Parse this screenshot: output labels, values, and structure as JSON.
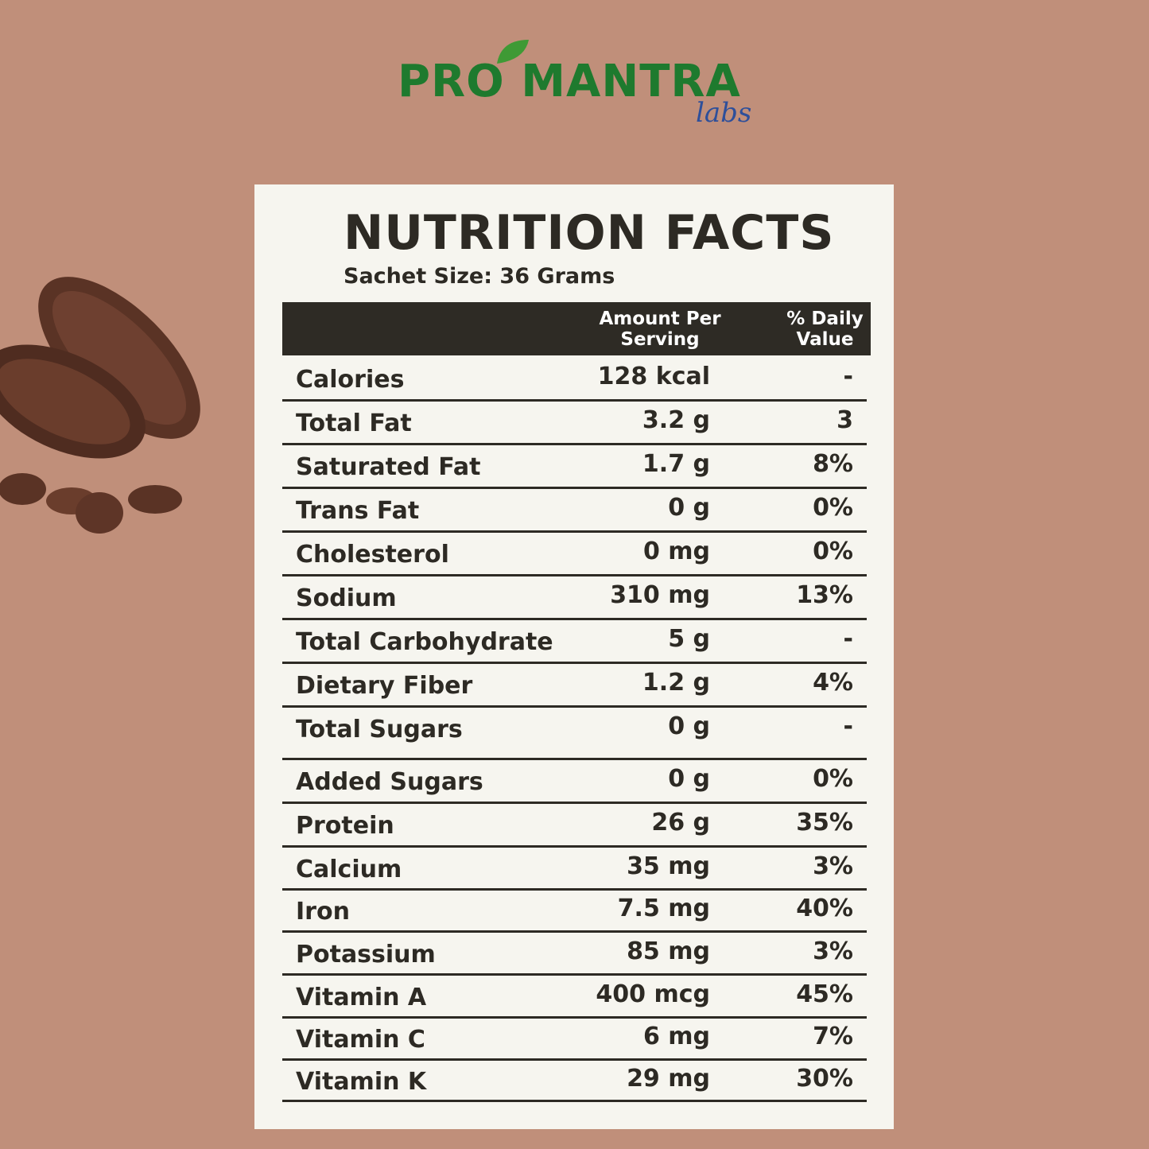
{
  "header": {
    "brand": "PRO MANTRA",
    "sub_brand": "labs"
  },
  "title": "NUTRITION FACTS",
  "subtitle": "Sachet Size: 36 Grams",
  "table": {
    "columns": [
      "Amount Per Serving",
      "% Daily Value"
    ],
    "rows": [
      [
        "Calories",
        "128 kcal",
        "-"
      ],
      [
        "Total Fat",
        "3.2 g",
        "3"
      ],
      [
        "Saturated Fat",
        "1.7 g",
        "8%"
      ],
      [
        "Trans Fat",
        "0 g",
        "0%"
      ],
      [
        "Cholesterol",
        "0 mg",
        "0%"
      ],
      [
        "Sodium",
        "310 mg",
        "13%"
      ],
      [
        "Total Carbohydrate",
        "5 g",
        "-"
      ],
      [
        "Dietary Fiber",
        "1.2 g",
        "4%"
      ],
      [
        "Total Sugars",
        "0 g",
        "-"
      ],
      [
        "Added Sugars",
        "0 g",
        "0%"
      ],
      [
        "Protein",
        "26 g",
        "35%"
      ],
      [
        "Calcium",
        "35 mg",
        "3%"
      ],
      [
        "Iron",
        "7.5 mg",
        "40%"
      ],
      [
        "Potassium",
        "85 mg",
        "3%"
      ],
      [
        "Vitamin A",
        "400 mcg",
        "45%"
      ],
      [
        "Vitamin C",
        "6 mg",
        "7%"
      ],
      [
        "Vitamin K",
        "29 mg",
        "30%"
      ]
    ]
  }
}
